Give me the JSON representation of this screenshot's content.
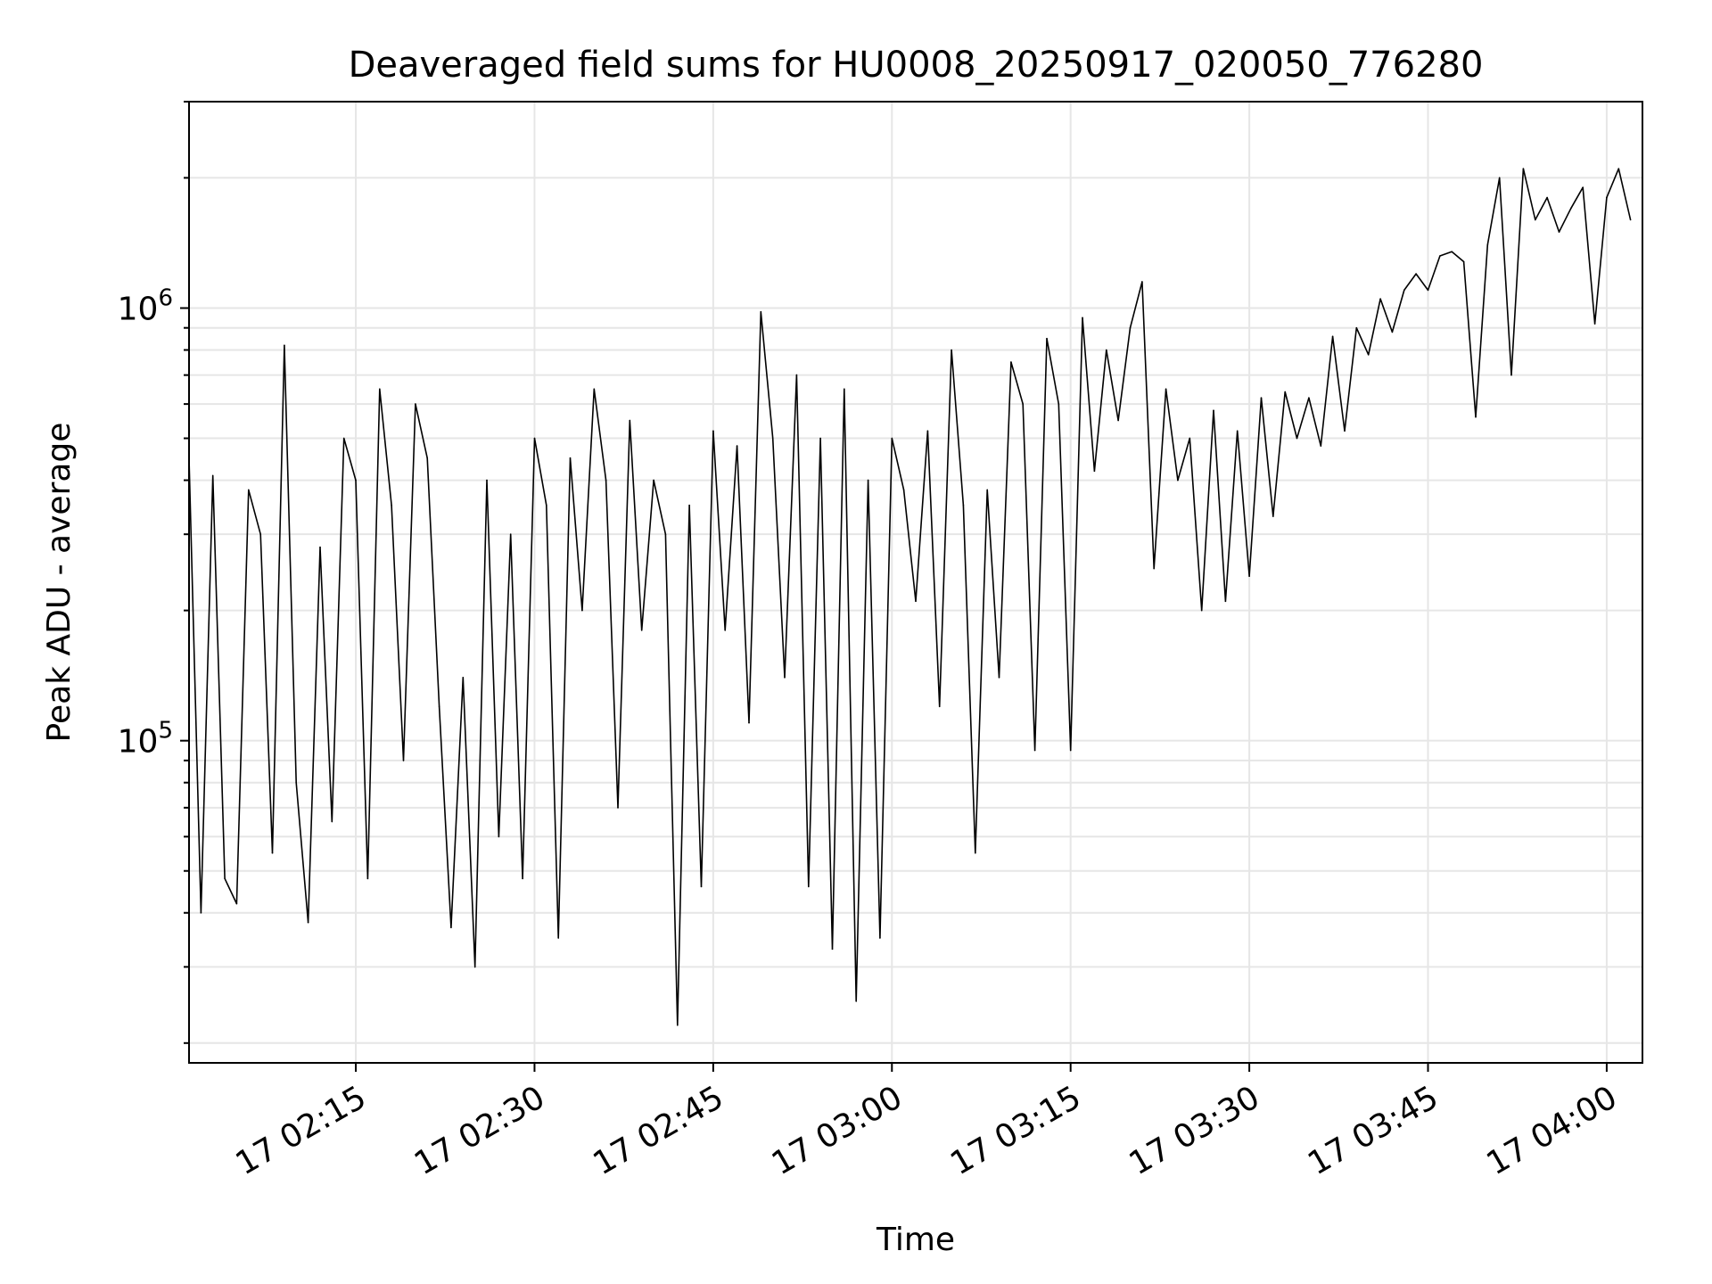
{
  "chart_data": {
    "type": "line",
    "title": "Deaveraged field sums for HU0008_20250917_020050_776280",
    "xlabel": "Time",
    "ylabel": "Peak ADU - average",
    "yscale": "log",
    "ylim": [
      18000,
      3000000
    ],
    "xlim": [
      "2025-09-17 02:01",
      "2025-09-17 04:03"
    ],
    "x_ticks": [
      {
        "time": "2025-09-17 02:15",
        "label": "17 02:15"
      },
      {
        "time": "2025-09-17 02:30",
        "label": "17 02:30"
      },
      {
        "time": "2025-09-17 02:45",
        "label": "17 02:45"
      },
      {
        "time": "2025-09-17 03:00",
        "label": "17 03:00"
      },
      {
        "time": "2025-09-17 03:15",
        "label": "17 03:15"
      },
      {
        "time": "2025-09-17 03:30",
        "label": "17 03:30"
      },
      {
        "time": "2025-09-17 03:45",
        "label": "17 03:45"
      },
      {
        "time": "2025-09-17 04:00",
        "label": "17 04:00"
      }
    ],
    "y_ticks": [
      {
        "value": 100000,
        "label": "10^5"
      },
      {
        "value": 1000000,
        "label": "10^6"
      }
    ],
    "grid": true,
    "series_color": "#000000",
    "grid_color": "#e6e6e6",
    "series": [
      {
        "x": [
          "2025-09-17 02:01",
          "2025-09-17 02:02",
          "2025-09-17 02:03",
          "2025-09-17 02:04",
          "2025-09-17 02:05",
          "2025-09-17 02:06",
          "2025-09-17 02:07",
          "2025-09-17 02:08",
          "2025-09-17 02:09",
          "2025-09-17 02:10",
          "2025-09-17 02:11",
          "2025-09-17 02:12",
          "2025-09-17 02:13",
          "2025-09-17 02:14",
          "2025-09-17 02:15",
          "2025-09-17 02:16",
          "2025-09-17 02:17",
          "2025-09-17 02:18",
          "2025-09-17 02:19",
          "2025-09-17 02:20",
          "2025-09-17 02:21",
          "2025-09-17 02:22",
          "2025-09-17 02:23",
          "2025-09-17 02:24",
          "2025-09-17 02:25",
          "2025-09-17 02:26",
          "2025-09-17 02:27",
          "2025-09-17 02:28",
          "2025-09-17 02:29",
          "2025-09-17 02:30",
          "2025-09-17 02:31",
          "2025-09-17 02:32",
          "2025-09-17 02:33",
          "2025-09-17 02:34",
          "2025-09-17 02:35",
          "2025-09-17 02:36",
          "2025-09-17 02:37",
          "2025-09-17 02:38",
          "2025-09-17 02:39",
          "2025-09-17 02:40",
          "2025-09-17 02:41",
          "2025-09-17 02:42",
          "2025-09-17 02:43",
          "2025-09-17 02:44",
          "2025-09-17 02:45",
          "2025-09-17 02:46",
          "2025-09-17 02:47",
          "2025-09-17 02:48",
          "2025-09-17 02:49",
          "2025-09-17 02:50",
          "2025-09-17 02:51",
          "2025-09-17 02:52",
          "2025-09-17 02:53",
          "2025-09-17 02:54",
          "2025-09-17 02:55",
          "2025-09-17 02:56",
          "2025-09-17 02:57",
          "2025-09-17 02:58",
          "2025-09-17 02:59",
          "2025-09-17 03:00",
          "2025-09-17 03:01",
          "2025-09-17 03:02",
          "2025-09-17 03:03",
          "2025-09-17 03:04",
          "2025-09-17 03:05",
          "2025-09-17 03:06",
          "2025-09-17 03:07",
          "2025-09-17 03:08",
          "2025-09-17 03:09",
          "2025-09-17 03:10",
          "2025-09-17 03:11",
          "2025-09-17 03:12",
          "2025-09-17 03:13",
          "2025-09-17 03:14",
          "2025-09-17 03:15",
          "2025-09-17 03:16",
          "2025-09-17 03:17",
          "2025-09-17 03:18",
          "2025-09-17 03:19",
          "2025-09-17 03:20",
          "2025-09-17 03:21",
          "2025-09-17 03:22",
          "2025-09-17 03:23",
          "2025-09-17 03:24",
          "2025-09-17 03:25",
          "2025-09-17 03:26",
          "2025-09-17 03:27",
          "2025-09-17 03:28",
          "2025-09-17 03:29",
          "2025-09-17 03:30",
          "2025-09-17 03:31",
          "2025-09-17 03:32",
          "2025-09-17 03:33",
          "2025-09-17 03:34",
          "2025-09-17 03:35",
          "2025-09-17 03:36",
          "2025-09-17 03:37",
          "2025-09-17 03:38",
          "2025-09-17 03:39",
          "2025-09-17 03:40",
          "2025-09-17 03:41",
          "2025-09-17 03:42",
          "2025-09-17 03:43",
          "2025-09-17 03:44",
          "2025-09-17 03:45",
          "2025-09-17 03:46",
          "2025-09-17 03:47",
          "2025-09-17 03:48",
          "2025-09-17 03:49",
          "2025-09-17 03:50",
          "2025-09-17 03:51",
          "2025-09-17 03:52",
          "2025-09-17 03:53",
          "2025-09-17 03:54",
          "2025-09-17 03:55",
          "2025-09-17 03:56",
          "2025-09-17 03:57",
          "2025-09-17 03:58",
          "2025-09-17 03:59",
          "2025-09-17 04:00",
          "2025-09-17 04:01",
          "2025-09-17 04:02"
        ],
        "values": [
          450000,
          40000,
          410000,
          48000,
          42000,
          380000,
          300000,
          55000,
          820000,
          80000,
          38000,
          280000,
          65000,
          500000,
          400000,
          48000,
          650000,
          350000,
          90000,
          600000,
          450000,
          120000,
          37000,
          140000,
          30000,
          400000,
          60000,
          300000,
          48000,
          500000,
          350000,
          35000,
          450000,
          200000,
          650000,
          400000,
          70000,
          550000,
          180000,
          400000,
          300000,
          22000,
          350000,
          46000,
          520000,
          180000,
          480000,
          110000,
          980000,
          500000,
          140000,
          700000,
          46000,
          500000,
          33000,
          650000,
          25000,
          400000,
          35000,
          500000,
          380000,
          210000,
          520000,
          120000,
          800000,
          350000,
          55000,
          380000,
          140000,
          750000,
          600000,
          95000,
          850000,
          600000,
          95000,
          950000,
          420000,
          800000,
          550000,
          900000,
          1150000,
          250000,
          650000,
          400000,
          500000,
          200000,
          580000,
          210000,
          520000,
          240000,
          620000,
          330000,
          640000,
          500000,
          620000,
          480000,
          860000,
          520000,
          900000,
          780000,
          1050000,
          880000,
          1100000,
          1200000,
          1100000,
          1320000,
          1350000,
          1280000,
          560000,
          1400000,
          2000000,
          700000,
          2100000,
          1600000,
          1800000,
          1500000,
          1700000,
          1900000,
          920000,
          1800000,
          2100000,
          1600000
        ]
      }
    ]
  }
}
